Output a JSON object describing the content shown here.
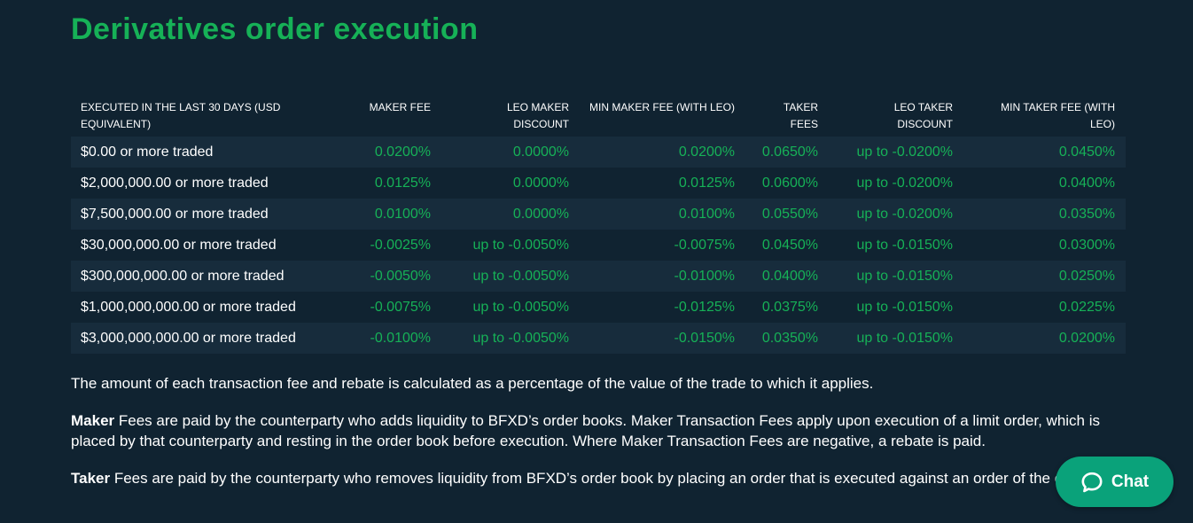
{
  "page": {
    "title": "Derivatives order execution"
  },
  "table": {
    "headers": [
      "EXECUTED IN THE LAST 30 DAYS (USD EQUIVALENT)",
      "MAKER FEE",
      "LEO MAKER DISCOUNT",
      "MIN MAKER FEE (WITH LEO)",
      "TAKER FEES",
      "LEO TAKER DISCOUNT",
      "MIN TAKER FEE (WITH LEO)"
    ],
    "rows": [
      [
        "$0.00 or more traded",
        "0.0200%",
        "0.0000%",
        "0.0200%",
        "0.0650%",
        "up to -0.0200%",
        "0.0450%"
      ],
      [
        "$2,000,000.00 or more traded",
        "0.0125%",
        "0.0000%",
        "0.0125%",
        "0.0600%",
        "up to -0.0200%",
        "0.0400%"
      ],
      [
        "$7,500,000.00 or more traded",
        "0.0100%",
        "0.0000%",
        "0.0100%",
        "0.0550%",
        "up to -0.0200%",
        "0.0350%"
      ],
      [
        "$30,000,000.00 or more traded",
        "-0.0025%",
        "up to -0.0050%",
        "-0.0075%",
        "0.0450%",
        "up to -0.0150%",
        "0.0300%"
      ],
      [
        "$300,000,000.00 or more traded",
        "-0.0050%",
        "up to -0.0050%",
        "-0.0100%",
        "0.0400%",
        "up to -0.0150%",
        "0.0250%"
      ],
      [
        "$1,000,000,000.00 or more traded",
        "-0.0075%",
        "up to -0.0050%",
        "-0.0125%",
        "0.0375%",
        "up to -0.0150%",
        "0.0225%"
      ],
      [
        "$3,000,000,000.00 or more traded",
        "-0.0100%",
        "up to -0.0050%",
        "-0.0150%",
        "0.0350%",
        "up to -0.0150%",
        "0.0200%"
      ]
    ]
  },
  "notes": {
    "intro": "The amount of each transaction fee and rebate is calculated as a percentage of the value of the trade to which it applies.",
    "maker_bold": "Maker",
    "maker_text": " Fees are paid by the counterparty who adds liquidity to BFXD’s order books. Maker Transaction Fees apply upon execution of a limit order, which is placed by that counterparty and resting in the order book before execution. Where Maker Transaction Fees are negative, a rebate is paid.",
    "taker_bold": "Taker",
    "taker_text": " Fees are paid by the counterparty who removes liquidity from BFXD’s order book by placing an order that is executed against an order of the order book."
  },
  "chat": {
    "label": "Chat",
    "icon": "chat-bubble-icon"
  },
  "colors": {
    "background": "#102331",
    "row_alt": "#172c3c",
    "accent_green": "#16b157",
    "chat_button": "#0aa27a"
  }
}
